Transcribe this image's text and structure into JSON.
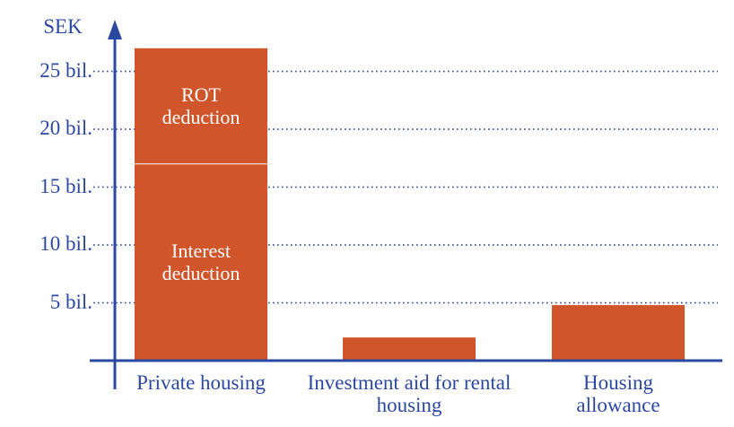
{
  "chart_data": {
    "type": "bar",
    "stacked": true,
    "ylabel": "SEK",
    "categories": [
      "Private housing",
      "Investment aid for rental housing",
      "Housing allowance"
    ],
    "series": [
      {
        "name": "Interest deduction",
        "color": "#d0552b",
        "values": [
          17,
          null,
          null
        ]
      },
      {
        "name": "ROT deduction",
        "color": "#d0552b",
        "values": [
          10,
          null,
          null
        ]
      },
      {
        "color": "#d0552b",
        "values": [
          null,
          2,
          4.8
        ]
      }
    ],
    "ylim": [
      0,
      29
    ],
    "yticks": [
      {
        "value": 5,
        "label": "5 bil."
      },
      {
        "value": 10,
        "label": "10 bil."
      },
      {
        "value": 15,
        "label": "15 bil."
      },
      {
        "value": 20,
        "label": "20 bil."
      },
      {
        "value": 25,
        "label": "25 bil."
      }
    ],
    "grid": true
  }
}
